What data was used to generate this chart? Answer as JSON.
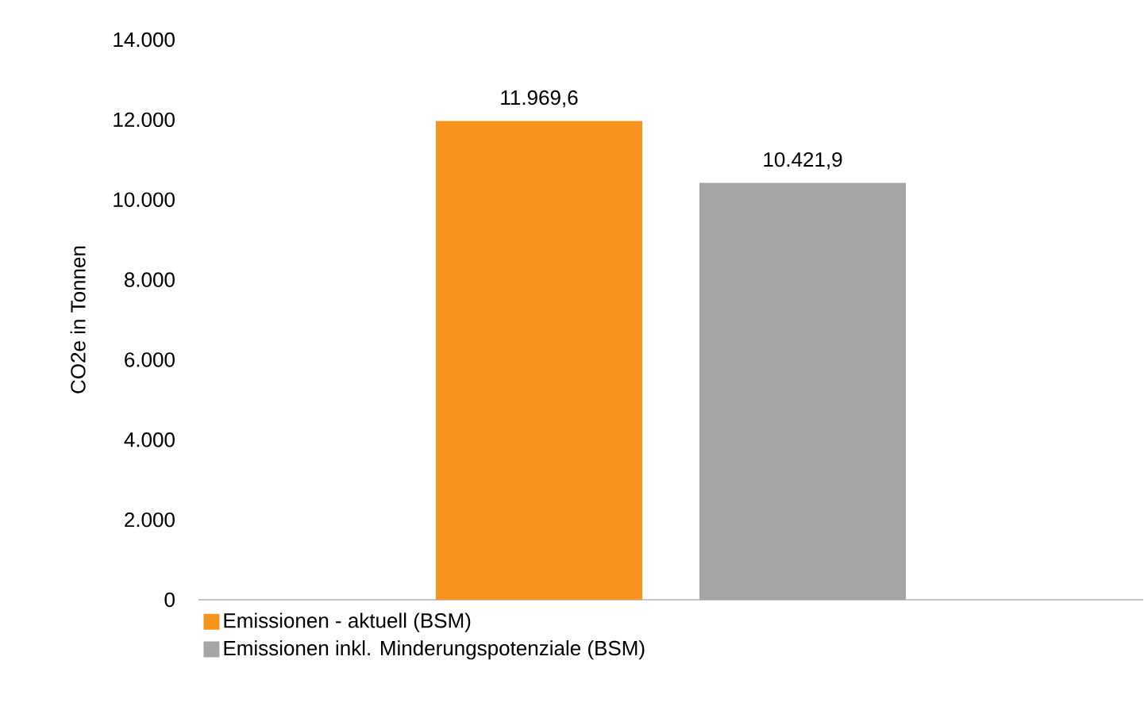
{
  "chart_data": {
    "type": "bar",
    "ylabel": "CO2e in Tonnen",
    "categories": [
      null
    ],
    "series": [
      {
        "name": "Emissionen - aktuell (BSM)",
        "color": "#f7941d",
        "values": [
          11969.6
        ],
        "value_labels": [
          "11.969,6"
        ]
      },
      {
        "name": "Emissionen inkl. Minderungspotenziale (BSM)",
        "color": "#a5a5a5",
        "values": [
          10421.9
        ],
        "value_labels": [
          "10.421,9"
        ]
      }
    ],
    "ylim": [
      0,
      14000
    ],
    "yticks": [
      {
        "value": 0,
        "label": "0"
      },
      {
        "value": 2000,
        "label": "2.000"
      },
      {
        "value": 4000,
        "label": "4.000"
      },
      {
        "value": 6000,
        "label": "6.000"
      },
      {
        "value": 8000,
        "label": "8.000"
      },
      {
        "value": 10000,
        "label": "10.000"
      },
      {
        "value": 12000,
        "label": "12.000"
      },
      {
        "value": 14000,
        "label": "14.000"
      }
    ],
    "grid": false,
    "legend": "bottom left"
  }
}
